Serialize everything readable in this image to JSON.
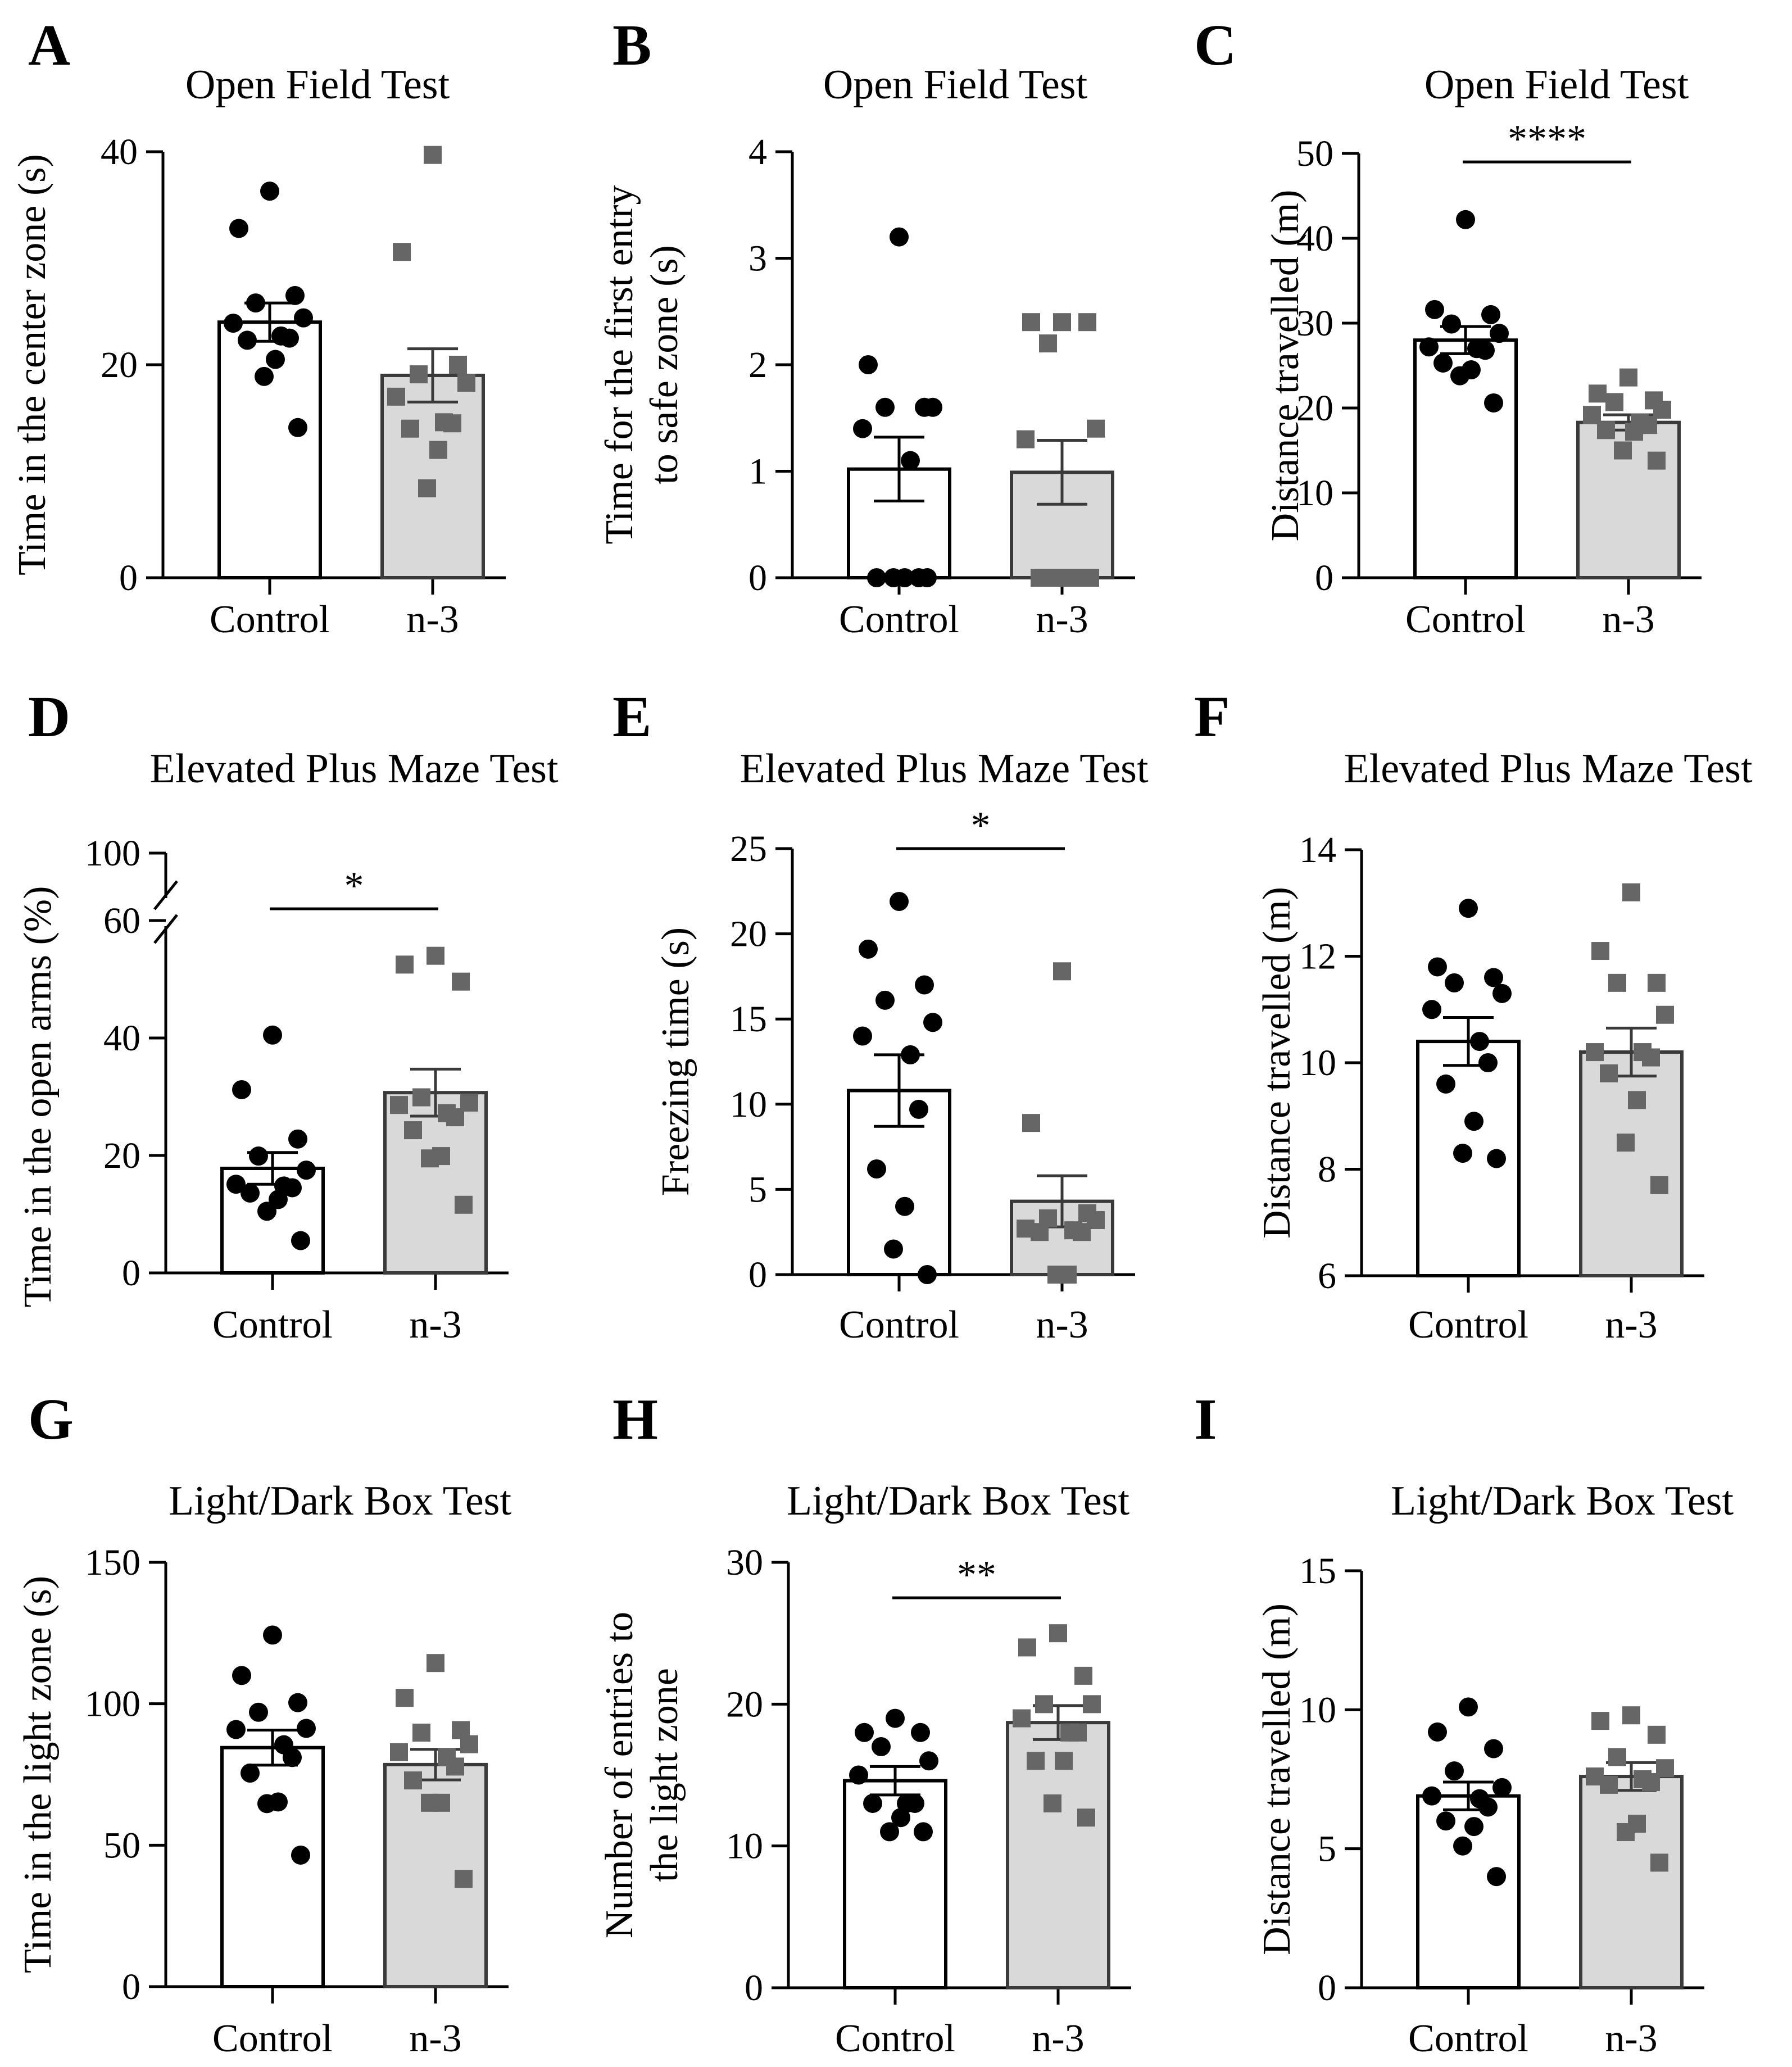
{
  "colors": {
    "control_fill": "#ffffff",
    "n3_fill": "#d9d9d9",
    "control_point": "#000000",
    "n3_point": "#666666",
    "axis": "#000000"
  },
  "chart_data": [
    {
      "id": "A",
      "panel": "A",
      "type": "bar",
      "title": "Open Field Test",
      "ylabel": [
        "Time in the center zone (s)"
      ],
      "categories": [
        "Control",
        "n-3"
      ],
      "ylim": [
        0,
        40
      ],
      "yticks": [
        0,
        20,
        40
      ],
      "series": [
        {
          "name": "Control",
          "mean": 24,
          "sem": 1.8,
          "points": [
            36.3,
            32.8,
            26.5,
            25.8,
            24.4,
            23.9,
            22.7,
            22.5,
            22.3,
            20.5,
            18.9,
            14.1
          ]
        },
        {
          "name": "n-3",
          "mean": 19,
          "sem": 2.5,
          "points": [
            39.7,
            30.6,
            20.0,
            19.1,
            18.3,
            17.0,
            14.6,
            14.5,
            14.0,
            12.0,
            8.4
          ]
        }
      ],
      "significance": null
    },
    {
      "id": "B",
      "panel": "B",
      "type": "bar",
      "title": "Open Field Test",
      "ylabel": [
        "Time for the first entry",
        "to safe zone (s)"
      ],
      "categories": [
        "Control",
        "n-3"
      ],
      "ylim": [
        0,
        4
      ],
      "yticks": [
        0,
        1,
        2,
        3,
        4
      ],
      "series": [
        {
          "name": "Control",
          "mean": 1.02,
          "sem": 0.3,
          "points": [
            3.2,
            2.0,
            1.6,
            1.6,
            1.6,
            1.4,
            1.1,
            0,
            0,
            0,
            0,
            0
          ]
        },
        {
          "name": "n-3",
          "mean": 0.99,
          "sem": 0.3,
          "points": [
            2.4,
            2.4,
            2.4,
            2.2,
            1.4,
            1.3,
            0,
            0,
            0,
            0,
            0,
            0
          ]
        }
      ],
      "significance": null
    },
    {
      "id": "C",
      "panel": "C",
      "type": "bar",
      "title": "Open Field Test",
      "ylabel": [
        "Distance travelled (m)"
      ],
      "categories": [
        "Control",
        "n-3"
      ],
      "ylim": [
        0,
        50
      ],
      "yticks": [
        0,
        10,
        20,
        30,
        40,
        50
      ],
      "series": [
        {
          "name": "Control",
          "mean": 28,
          "sem": 1.6,
          "points": [
            42.2,
            31.6,
            31.0,
            29.9,
            28.8,
            27.2,
            27.0,
            26.8,
            25.3,
            24.5,
            23.8,
            20.6
          ]
        },
        {
          "name": "n-3",
          "mean": 18.3,
          "sem": 0.9,
          "points": [
            23.6,
            21.7,
            20.9,
            20.7,
            19.8,
            19.2,
            18.3,
            18.0,
            17.4,
            17.2,
            15.0,
            13.8
          ]
        }
      ],
      "significance": {
        "label": "****",
        "y": 49
      }
    },
    {
      "id": "D",
      "panel": "D",
      "type": "bar",
      "title": "Elevated Plus Maze Test",
      "ylabel": [
        "Time in the open arms (%)"
      ],
      "categories": [
        "Control",
        "n-3"
      ],
      "ylim": [
        0,
        60
      ],
      "yticks": [
        0,
        20,
        40,
        60
      ],
      "axis_break": {
        "between": [
          60,
          100
        ],
        "upper_tick": 100
      },
      "series": [
        {
          "name": "Control",
          "mean": 17.8,
          "sem": 2.7,
          "points": [
            40.5,
            31.2,
            22.8,
            19.9,
            17.5,
            15.1,
            14.8,
            14.5,
            13.6,
            12.5,
            10.5,
            5.5
          ]
        },
        {
          "name": "n-3",
          "mean": 30.7,
          "sem": 4.0,
          "points": [
            54.0,
            52.5,
            49.6,
            29.9,
            29.0,
            28.6,
            27.2,
            26.5,
            24.3,
            19.9,
            19.5,
            11.6
          ]
        }
      ],
      "significance": {
        "label": "*",
        "y": 62
      }
    },
    {
      "id": "E",
      "panel": "E",
      "type": "bar",
      "title": "Elevated Plus Maze Test",
      "ylabel": [
        "Freezing time (s)"
      ],
      "categories": [
        "Control",
        "n-3"
      ],
      "ylim": [
        0,
        25
      ],
      "yticks": [
        0,
        5,
        10,
        15,
        20,
        25
      ],
      "series": [
        {
          "name": "Control",
          "mean": 10.8,
          "sem": 2.1,
          "points": [
            21.9,
            19.1,
            17.0,
            16.1,
            14.8,
            14.0,
            12.9,
            9.7,
            6.2,
            4.0,
            1.5,
            0
          ]
        },
        {
          "name": "n-3",
          "mean": 4.3,
          "sem": 1.5,
          "points": [
            17.8,
            8.9,
            3.6,
            3.3,
            3.2,
            2.7,
            2.6,
            2.5,
            2.5,
            0,
            0
          ]
        }
      ],
      "significance": {
        "label": "*",
        "y": 25
      }
    },
    {
      "id": "F",
      "panel": "F",
      "type": "bar",
      "title": "Elevated Plus Maze Test",
      "ylabel": [
        "Distance travelled (m)"
      ],
      "categories": [
        "Control",
        "n-3"
      ],
      "ylim": [
        6,
        14
      ],
      "yticks": [
        6,
        8,
        10,
        12,
        14
      ],
      "series": [
        {
          "name": "Control",
          "mean": 10.4,
          "sem": 0.45,
          "points": [
            12.9,
            11.8,
            11.6,
            11.5,
            11.3,
            11.0,
            10.4,
            10.0,
            9.6,
            8.9,
            8.3,
            8.2
          ]
        },
        {
          "name": "n-3",
          "mean": 10.2,
          "sem": 0.45,
          "points": [
            13.2,
            12.1,
            11.5,
            11.5,
            10.9,
            10.2,
            10.2,
            10.1,
            9.8,
            9.3,
            8.5,
            7.7
          ]
        }
      ],
      "significance": null
    },
    {
      "id": "G",
      "panel": "G",
      "type": "bar",
      "title": "Light/Dark Box Test",
      "ylabel": [
        "Time in the light zone (s)"
      ],
      "categories": [
        "Control",
        "n-3"
      ],
      "ylim": [
        0,
        150
      ],
      "yticks": [
        0,
        50,
        100,
        150
      ],
      "series": [
        {
          "name": "Control",
          "mean": 84.5,
          "sem": 6.2,
          "points": [
            124.3,
            110.0,
            100.4,
            97.0,
            91.3,
            90.9,
            85.5,
            81.0,
            75.5,
            65.3,
            64.7,
            46.5
          ]
        },
        {
          "name": "n-3",
          "mean": 78.5,
          "sem": 5.4,
          "points": [
            114.4,
            102.1,
            90.7,
            89.8,
            85.7,
            82.9,
            81.1,
            77.8,
            72.9,
            65.0,
            65.0,
            38.1
          ]
        }
      ],
      "significance": null
    },
    {
      "id": "H",
      "panel": "H",
      "type": "bar",
      "title": "Light/Dark Box Test",
      "ylabel": [
        "Number of entries to",
        "the light zone"
      ],
      "categories": [
        "Control",
        "n-3"
      ],
      "ylim": [
        0,
        30
      ],
      "yticks": [
        0,
        10,
        20,
        30
      ],
      "series": [
        {
          "name": "Control",
          "mean": 14.6,
          "sem": 1.0,
          "points": [
            19,
            18,
            18,
            17,
            16,
            15,
            13,
            13,
            13,
            12,
            11,
            11
          ]
        },
        {
          "name": "n-3",
          "mean": 18.7,
          "sem": 1.2,
          "points": [
            25,
            24,
            22,
            20,
            20,
            19,
            18,
            18,
            16,
            16,
            13,
            12
          ]
        }
      ],
      "significance": {
        "label": "**",
        "y": 27.5
      }
    },
    {
      "id": "I",
      "panel": "I",
      "type": "bar",
      "title": "Light/Dark Box Test",
      "ylabel": [
        "Distance travelled (m)"
      ],
      "categories": [
        "Control",
        "n-3"
      ],
      "ylim": [
        0,
        15
      ],
      "yticks": [
        0,
        5,
        10,
        15
      ],
      "series": [
        {
          "name": "Control",
          "mean": 6.9,
          "sem": 0.5,
          "points": [
            10.1,
            9.2,
            8.6,
            7.8,
            7.2,
            6.9,
            6.8,
            6.5,
            6.0,
            5.8,
            5.1,
            4.0
          ]
        },
        {
          "name": "n-3",
          "mean": 7.6,
          "sem": 0.5,
          "points": [
            9.8,
            9.6,
            9.1,
            8.3,
            7.9,
            7.6,
            7.5,
            7.4,
            7.3,
            5.9,
            5.6,
            4.5
          ]
        }
      ],
      "significance": null
    }
  ]
}
